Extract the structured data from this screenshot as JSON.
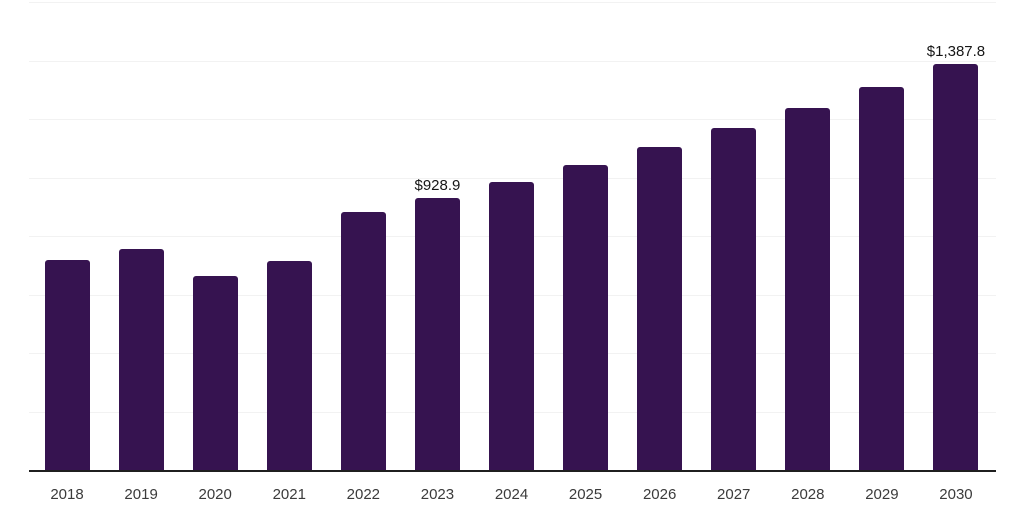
{
  "chart_data": {
    "type": "bar",
    "title": "",
    "categories": [
      "2018",
      "2019",
      "2020",
      "2021",
      "2022",
      "2023",
      "2024",
      "2025",
      "2026",
      "2027",
      "2028",
      "2029",
      "2030"
    ],
    "values": [
      717,
      754,
      663,
      716,
      883,
      928.9,
      983.7,
      1041.6,
      1103.0,
      1168.0,
      1236.8,
      1309.7,
      1387.8
    ],
    "data_labels": [
      "",
      "",
      "",
      "",
      "",
      "$928.9",
      "",
      "",
      "",
      "",
      "",
      "",
      "$1,387.8"
    ],
    "ylim": [
      0,
      1600
    ],
    "gridline_step": 200,
    "grid": true,
    "legend_position": "none",
    "xlabel": "",
    "ylabel": "",
    "colors": {
      "bar": "#361350",
      "axis": "#1f1f1f",
      "gridline": "#f2f2f2",
      "x_label": "#3b3b3b",
      "value_label": "#161616"
    }
  }
}
